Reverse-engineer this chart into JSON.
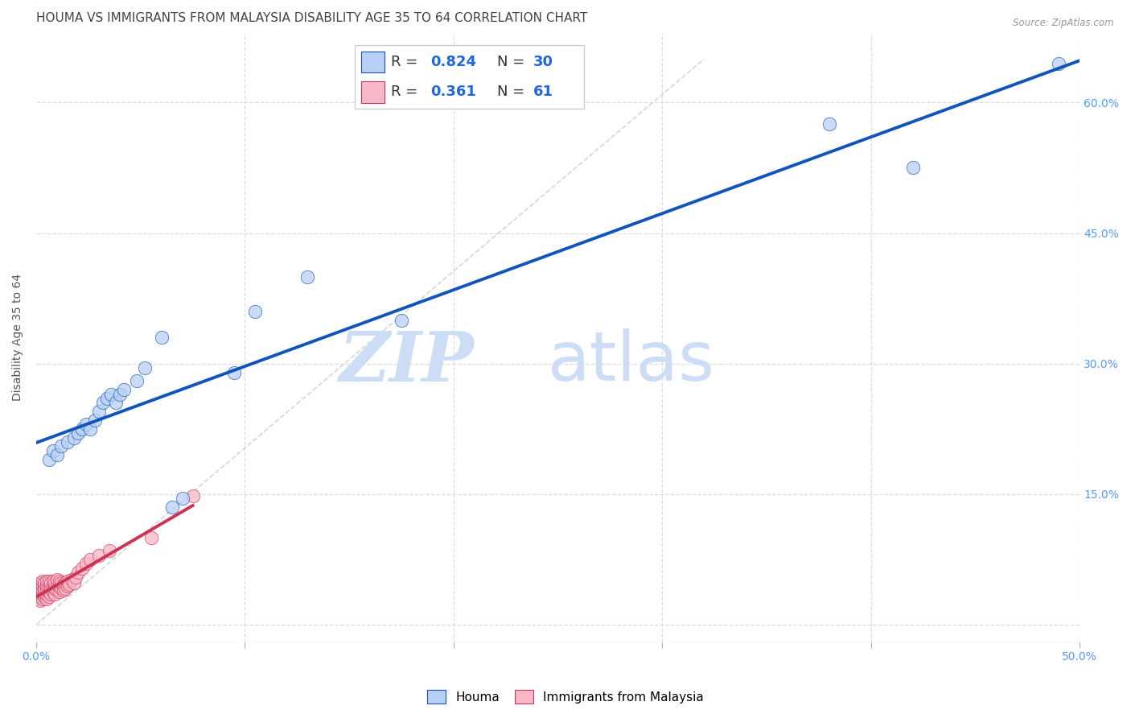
{
  "title": "HOUMA VS IMMIGRANTS FROM MALAYSIA DISABILITY AGE 35 TO 64 CORRELATION CHART",
  "source": "Source: ZipAtlas.com",
  "tick_color": "#5599ff",
  "ylabel": "Disability Age 35 to 64",
  "xlim": [
    0.0,
    0.5
  ],
  "ylim": [
    -0.02,
    0.68
  ],
  "xticks": [
    0.0,
    0.1,
    0.2,
    0.3,
    0.4,
    0.5
  ],
  "xtick_labels": [
    "0.0%",
    "",
    "",
    "",
    "",
    "50.0%"
  ],
  "ytick_positions": [
    0.0,
    0.15,
    0.3,
    0.45,
    0.6
  ],
  "ytick_labels": [
    "",
    "15.0%",
    "30.0%",
    "45.0%",
    "60.0%"
  ],
  "houma_R": 0.824,
  "houma_N": 30,
  "malaysia_R": 0.361,
  "malaysia_N": 61,
  "houma_color": "#b8d0f5",
  "malaysia_color": "#f9b8c8",
  "houma_line_color": "#1155bb",
  "malaysia_line_color": "#cc3355",
  "identity_line_color": "#cccccc",
  "watermark_zip": "ZIP",
  "watermark_atlas": "atlas",
  "watermark_color": "#ccddf5",
  "legend_text_color": "#333333",
  "legend_val_color": "#2266dd",
  "houma_x": [
    0.006,
    0.008,
    0.01,
    0.012,
    0.015,
    0.018,
    0.02,
    0.022,
    0.024,
    0.026,
    0.028,
    0.03,
    0.032,
    0.034,
    0.036,
    0.038,
    0.04,
    0.042,
    0.048,
    0.052,
    0.06,
    0.065,
    0.07,
    0.095,
    0.105,
    0.13,
    0.175,
    0.38,
    0.42,
    0.49
  ],
  "houma_y": [
    0.19,
    0.2,
    0.195,
    0.205,
    0.21,
    0.215,
    0.22,
    0.225,
    0.23,
    0.225,
    0.235,
    0.245,
    0.255,
    0.26,
    0.265,
    0.255,
    0.265,
    0.27,
    0.28,
    0.295,
    0.33,
    0.135,
    0.145,
    0.29,
    0.36,
    0.4,
    0.35,
    0.575,
    0.525,
    0.645
  ],
  "malaysia_x": [
    0.001,
    0.001,
    0.001,
    0.002,
    0.002,
    0.002,
    0.002,
    0.002,
    0.003,
    0.003,
    0.003,
    0.003,
    0.003,
    0.004,
    0.004,
    0.004,
    0.004,
    0.005,
    0.005,
    0.005,
    0.005,
    0.005,
    0.006,
    0.006,
    0.006,
    0.006,
    0.007,
    0.007,
    0.007,
    0.008,
    0.008,
    0.008,
    0.009,
    0.009,
    0.009,
    0.01,
    0.01,
    0.01,
    0.011,
    0.011,
    0.011,
    0.012,
    0.012,
    0.013,
    0.013,
    0.014,
    0.014,
    0.015,
    0.015,
    0.016,
    0.017,
    0.018,
    0.019,
    0.02,
    0.022,
    0.024,
    0.026,
    0.03,
    0.035,
    0.055,
    0.075
  ],
  "malaysia_y": [
    0.03,
    0.035,
    0.04,
    0.028,
    0.032,
    0.038,
    0.042,
    0.048,
    0.03,
    0.035,
    0.04,
    0.045,
    0.05,
    0.032,
    0.036,
    0.042,
    0.048,
    0.03,
    0.035,
    0.04,
    0.045,
    0.05,
    0.032,
    0.038,
    0.044,
    0.05,
    0.035,
    0.042,
    0.048,
    0.038,
    0.044,
    0.05,
    0.035,
    0.042,
    0.048,
    0.04,
    0.046,
    0.052,
    0.038,
    0.044,
    0.05,
    0.042,
    0.048,
    0.04,
    0.046,
    0.042,
    0.048,
    0.044,
    0.05,
    0.046,
    0.052,
    0.048,
    0.055,
    0.06,
    0.065,
    0.07,
    0.075,
    0.08,
    0.085,
    0.1,
    0.148
  ],
  "background_color": "#ffffff",
  "grid_color": "#dddddd",
  "title_fontsize": 11,
  "axis_label_fontsize": 10,
  "tick_fontsize": 10,
  "legend_fontsize": 13
}
